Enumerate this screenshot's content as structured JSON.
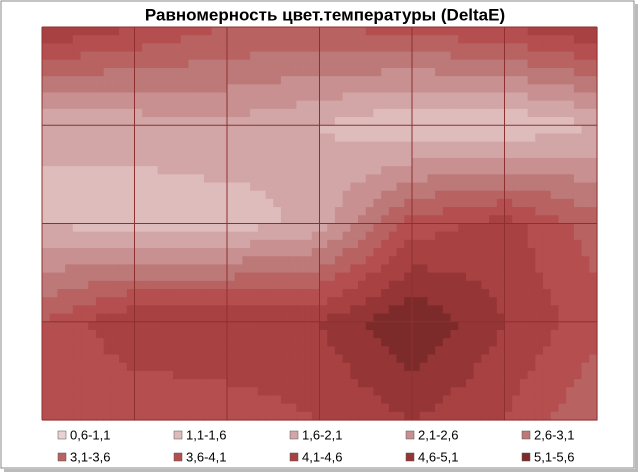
{
  "chart_data": {
    "type": "contour",
    "title": "Равномерность цвет.температуры (DeltaE)",
    "z": [
      [
        4.6,
        4.1,
        3.6,
        3.6,
        3.8,
        4.1,
        4.6
      ],
      [
        1.6,
        1.8,
        2.0,
        1.6,
        1.1,
        1.1,
        1.6
      ],
      [
        1.6,
        1.3,
        1.3,
        1.8,
        3.8,
        4.3,
        3.3
      ],
      [
        3.6,
        4.6,
        4.6,
        4.6,
        5.6,
        4.6,
        3.8
      ],
      [
        3.6,
        3.6,
        3.8,
        4.1,
        4.6,
        4.1,
        3.1
      ]
    ],
    "bands": [
      {
        "label": "0,6-1,1",
        "from": 0.6,
        "to": 1.1,
        "color": "#e9d2d2"
      },
      {
        "label": "1,1-1,6",
        "from": 1.1,
        "to": 1.6,
        "color": "#dfbcbc"
      },
      {
        "label": "1,6-2,1",
        "from": 1.6,
        "to": 2.1,
        "color": "#d2a6a6"
      },
      {
        "label": "2,1-2,6",
        "from": 2.1,
        "to": 2.6,
        "color": "#c89090"
      },
      {
        "label": "2,6-3,1",
        "from": 2.6,
        "to": 3.1,
        "color": "#bd7878"
      },
      {
        "label": "3,1-3,6",
        "from": 3.1,
        "to": 3.6,
        "color": "#b86262"
      },
      {
        "label": "3,6-4,1",
        "from": 3.6,
        "to": 4.1,
        "color": "#b54e4e"
      },
      {
        "label": "4,1-4,6",
        "from": 4.1,
        "to": 4.6,
        "color": "#a84141"
      },
      {
        "label": "4,6-5,1",
        "from": 4.6,
        "to": 5.1,
        "color": "#953535"
      },
      {
        "label": "5,1-5,6",
        "from": 5.1,
        "to": 5.6,
        "color": "#7d2a2a"
      }
    ]
  }
}
